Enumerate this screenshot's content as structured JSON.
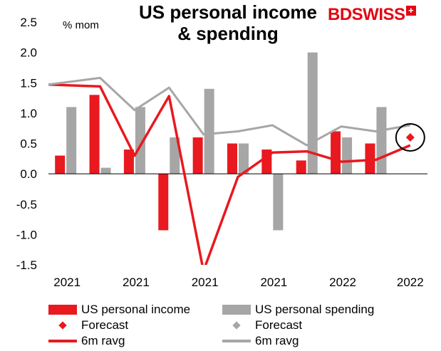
{
  "title_line1": "US personal income",
  "title_line2": "& spending",
  "unit": "% mom",
  "logo": {
    "bd": "BD",
    "swiss": "SWISS",
    "plus": "+"
  },
  "colors": {
    "income": "#e8191f",
    "spending": "#a6a6a6",
    "income_line": "#e8191f",
    "spending_line": "#a6a6a6"
  },
  "chart_data": {
    "type": "bar",
    "x_tick_labels": [
      "2021",
      "2021",
      "2021",
      "2021",
      "2022",
      "2022"
    ],
    "ylim": [
      -1.5,
      2.5
    ],
    "y_ticks": [
      "2.5",
      "2.0",
      "1.5",
      "1.0",
      "0.5",
      "0.0",
      "-0.5",
      "-1.0",
      "-1.5"
    ],
    "y_tick_values": [
      2.5,
      2.0,
      1.5,
      1.0,
      0.5,
      0.0,
      -0.5,
      -1.0,
      -1.5
    ],
    "series": [
      {
        "name": "US personal income",
        "kind": "bar",
        "values": [
          0.3,
          1.3,
          0.4,
          -0.93,
          0.6,
          0.5,
          0.4,
          0.22,
          0.7,
          0.5,
          null
        ]
      },
      {
        "name": "US personal spending",
        "kind": "bar",
        "values": [
          1.1,
          0.1,
          1.1,
          0.6,
          1.4,
          0.5,
          -0.93,
          2.0,
          0.6,
          1.1,
          null
        ]
      },
      {
        "name": "Forecast",
        "kind": "marker",
        "color_of": "income",
        "values": [
          null,
          null,
          null,
          null,
          null,
          null,
          null,
          null,
          null,
          null,
          0.6
        ]
      },
      {
        "name": "Forecast",
        "kind": "marker",
        "color_of": "spending",
        "values": [
          null,
          null,
          null,
          null,
          null,
          null,
          null,
          null,
          null,
          null,
          null
        ]
      },
      {
        "name": "6m ravg",
        "kind": "line",
        "color_of": "income",
        "values": [
          1.47,
          1.44,
          0.3,
          1.28,
          -1.6,
          -0.05,
          0.35,
          0.37,
          0.2,
          0.23,
          0.47
        ]
      },
      {
        "name": "6m ravg",
        "kind": "line",
        "color_of": "spending",
        "values": [
          1.47,
          1.58,
          1.05,
          1.42,
          0.65,
          0.7,
          0.8,
          0.47,
          0.78,
          0.7,
          0.8
        ]
      }
    ]
  },
  "legend": {
    "income": "US personal income",
    "spending": "US personal spending",
    "forecast_income": "Forecast",
    "forecast_spending": "Forecast",
    "ravg_income": "6m ravg",
    "ravg_spending": "6m ravg"
  }
}
